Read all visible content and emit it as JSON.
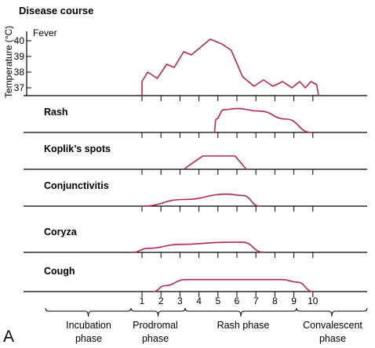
{
  "figure_label": "A",
  "top_panel": {
    "title": "Disease course",
    "ylabel": "Temperature (°C)",
    "series_label": "Fever",
    "yticks": [
      "40",
      "39",
      "38",
      "37"
    ]
  },
  "rows": [
    {
      "label": "Rash"
    },
    {
      "label": "Koplik’s spots"
    },
    {
      "label": "Conjunctivitis"
    },
    {
      "label": "Coryza"
    },
    {
      "label": "Cough"
    }
  ],
  "day_labels": [
    "1",
    "2",
    "3",
    "4",
    "5",
    "6",
    "7",
    "8",
    "9",
    "10"
  ],
  "phases": [
    {
      "line1": "Incubation",
      "line2": "phase"
    },
    {
      "line1": "Prodromal",
      "line2": "phase"
    },
    {
      "line1": "Rash phase",
      "line2": ""
    },
    {
      "line1": "Convalescent",
      "line2": "phase"
    }
  ],
  "colors": {
    "curve": "#b3245a",
    "axis": "#000000"
  },
  "chart_data": {
    "type": "line",
    "x_unit": "day",
    "fever": {
      "x": [
        0,
        0,
        0.3,
        0.8,
        1.3,
        1.7,
        2.2,
        2.6,
        3.1,
        3.6,
        4.2,
        4.7,
        5.3,
        5.9,
        6.4,
        6.9,
        7.4,
        7.9,
        8.3,
        8.6,
        8.9,
        9.2,
        9.3
      ],
      "y": [
        36.5,
        37.4,
        38.0,
        37.6,
        38.5,
        38.3,
        39.3,
        39.1,
        39.6,
        40.1,
        39.8,
        39.4,
        37.7,
        37.1,
        37.5,
        37.1,
        37.4,
        37.0,
        37.4,
        37.0,
        37.4,
        37.2,
        36.5
      ],
      "ylim": [
        36.5,
        40.5
      ]
    },
    "symptoms": [
      {
        "name": "Rash",
        "x": [
          3.8,
          3.9,
          4.3,
          5.0,
          6.2,
          7.6,
          8.9
        ],
        "y": [
          0,
          0.5,
          0.85,
          0.9,
          0.8,
          0.5,
          0
        ]
      },
      {
        "name": "Koplik’s spots",
        "x": [
          2.2,
          3.2,
          4.9,
          5.5
        ],
        "y": [
          0,
          0.5,
          0.5,
          0
        ]
      },
      {
        "name": "Conjunctivitis",
        "x": [
          0,
          2.2,
          4.5,
          5.3,
          6.2
        ],
        "y": [
          0,
          0.25,
          0.45,
          0.4,
          0
        ]
      },
      {
        "name": "Coryza",
        "x": [
          -0.5,
          0.3,
          2.0,
          4.5,
          5.3,
          6.4
        ],
        "y": [
          0,
          0.15,
          0.3,
          0.38,
          0.38,
          0
        ]
      },
      {
        "name": "Cough",
        "x": [
          0.6,
          1.2,
          2.3,
          7.4,
          8.2,
          9.0
        ],
        "y": [
          0,
          0.22,
          0.45,
          0.45,
          0.35,
          0
        ]
      }
    ]
  }
}
